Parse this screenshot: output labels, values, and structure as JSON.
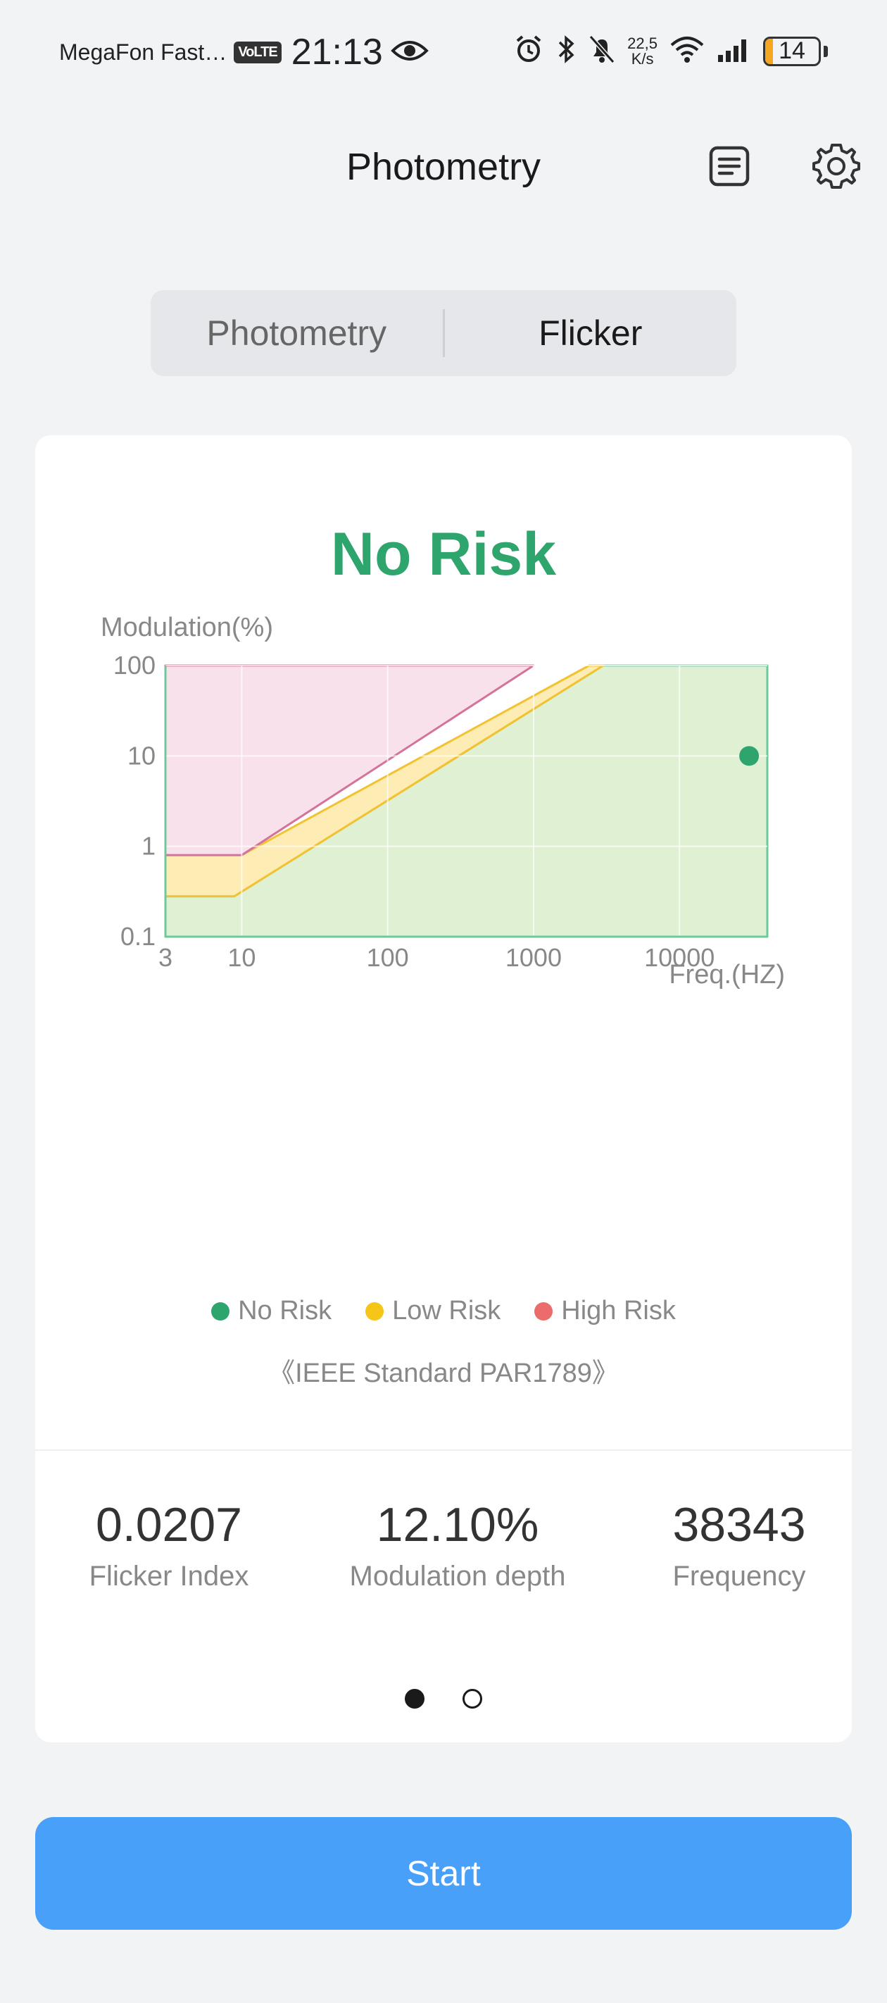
{
  "status_bar": {
    "carrier": "MegaFon Fast…",
    "volte_badge": "VoLTE",
    "time": "21:13",
    "net_speed_value": "22,5",
    "net_speed_unit": "K/s",
    "battery_level": "14",
    "battery_fraction": 0.14
  },
  "header": {
    "title": "Photometry",
    "icons": [
      "document-list-icon",
      "gear-icon"
    ]
  },
  "tabs": [
    {
      "label": "Photometry",
      "active": false
    },
    {
      "label": "Flicker",
      "active": true
    }
  ],
  "card": {
    "risk_status": "No Risk",
    "risk_color": "#2fa56e",
    "legend": [
      {
        "label": "No Risk",
        "color": "#2fa56e"
      },
      {
        "label": "Low Risk",
        "color": "#f5c518"
      },
      {
        "label": "High Risk",
        "color": "#ec6b6b"
      }
    ],
    "standard": "《IEEE Standard PAR1789》",
    "metrics": [
      {
        "value": "0.0207",
        "label": "Flicker Index"
      },
      {
        "value": "12.10%",
        "label": "Modulation depth"
      },
      {
        "value": "38343",
        "label": "Frequency"
      }
    ],
    "pager": {
      "pages": 2,
      "active": 0
    }
  },
  "chart_data": {
    "type": "area",
    "ylabel": "Modulation(%)",
    "xlabel": "Freq.(HZ)",
    "x_scale": "log",
    "y_scale": "log",
    "xlim": [
      3,
      40000
    ],
    "ylim": [
      0.1,
      100
    ],
    "x_ticks": [
      "3",
      "10",
      "100",
      "1000",
      "10000"
    ],
    "x_tick_values": [
      3,
      10,
      100,
      1000,
      10000
    ],
    "y_ticks": [
      "100",
      "10",
      "1",
      "0.1"
    ],
    "y_tick_values": [
      100,
      10,
      1,
      0.1
    ],
    "grid": true,
    "legend_position": "bottom",
    "regions": [
      {
        "name": "No Risk",
        "fill": "#e0f0d3",
        "stroke": "#6cc99c",
        "points": [
          [
            3,
            0.1
          ],
          [
            3,
            0.28
          ],
          [
            8.9,
            0.28
          ],
          [
            3000,
            100
          ],
          [
            40000,
            100
          ],
          [
            40000,
            0.1
          ]
        ]
      },
      {
        "name": "Low Risk",
        "fill": "#fdecb3",
        "stroke": "#f2c230",
        "points": [
          [
            3,
            0.28
          ],
          [
            3,
            0.8
          ],
          [
            10,
            0.8
          ],
          [
            2400,
            100
          ],
          [
            3000,
            100
          ],
          [
            8.9,
            0.28
          ]
        ]
      },
      {
        "name": "High Risk",
        "fill": "#f9e1eb",
        "stroke": "#d4729c",
        "points": [
          [
            3,
            0.8
          ],
          [
            3,
            100
          ],
          [
            1000,
            100
          ],
          [
            10,
            0.8
          ]
        ]
      }
    ],
    "measurement": {
      "x": 30000,
      "y": 10,
      "color": "#2fa56e"
    }
  },
  "action": {
    "start_label": "Start"
  }
}
